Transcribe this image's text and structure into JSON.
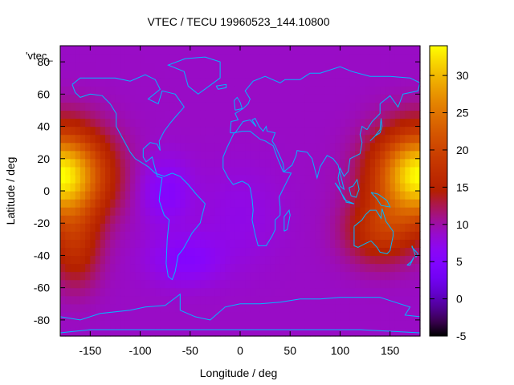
{
  "chart_data": {
    "type": "heatmap",
    "title": "VTEC / TECU 19960523_144.10800",
    "xlabel": "Longitude / deg",
    "ylabel": "Latitude / deg",
    "key_label": "'vtec_",
    "xlim": [
      -180,
      180
    ],
    "ylim": [
      -90,
      90
    ],
    "x_ticks": [
      -150,
      -100,
      -50,
      0,
      50,
      100,
      150
    ],
    "y_ticks": [
      -80,
      -60,
      -40,
      -20,
      0,
      20,
      40,
      60,
      80
    ],
    "colorbar": {
      "range": [
        -5,
        34
      ],
      "ticks": [
        -5,
        0,
        5,
        10,
        15,
        20,
        25,
        30
      ],
      "palette": "black-blue-purple-red-orange-yellow"
    },
    "cell_size_deg": 5,
    "features": {
      "background_level": 9,
      "peaks": [
        {
          "lon": 178,
          "lat": 10,
          "value": 34
        },
        {
          "lon": -178,
          "lat": 10,
          "value": 34
        }
      ],
      "minima": [
        {
          "lon": -80,
          "lat": 0,
          "value": 5
        },
        {
          "lon": -55,
          "lat": -40,
          "value": 5
        }
      ],
      "coastline_color": "#00b8ff"
    }
  }
}
